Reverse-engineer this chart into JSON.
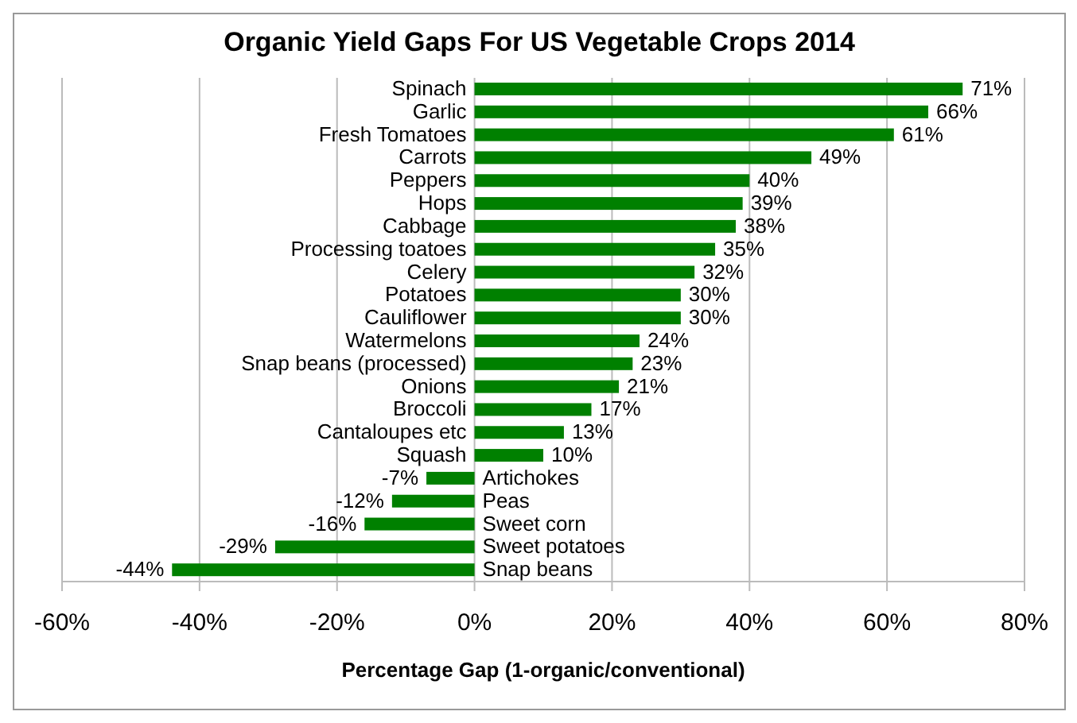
{
  "chart_data": {
    "type": "bar",
    "orientation": "horizontal",
    "title": "Organic Yield Gaps For US Vegetable Crops 2014",
    "xlabel": "Percentage Gap (1-organic/conventional)",
    "categories": [
      "Spinach",
      "Garlic",
      "Fresh Tomatoes",
      "Carrots",
      "Peppers",
      "Hops",
      "Cabbage",
      "Processing toatoes",
      "Celery",
      "Potatoes",
      "Cauliflower",
      "Watermelons",
      "Snap beans (processed)",
      "Onions",
      "Broccoli",
      "Cantaloupes etc",
      "Squash",
      "Artichokes",
      "Peas",
      "Sweet corn",
      "Sweet potatoes",
      "Snap beans"
    ],
    "values": [
      71,
      66,
      61,
      49,
      40,
      39,
      38,
      35,
      32,
      30,
      30,
      24,
      23,
      21,
      17,
      13,
      10,
      -7,
      -12,
      -16,
      -29,
      -44
    ],
    "value_labels": [
      "71%",
      "66%",
      "61%",
      "49%",
      "40%",
      "39%",
      "38%",
      "35%",
      "32%",
      "30%",
      "30%",
      "24%",
      "23%",
      "21%",
      "17%",
      "13%",
      "10%",
      "-7%",
      "-12%",
      "-16%",
      "-29%",
      "-44%"
    ],
    "color": "#008000",
    "xlim": [
      -60,
      80
    ],
    "xticks": [
      {
        "value": -60,
        "label": "-60%"
      },
      {
        "value": -40,
        "label": "-40%"
      },
      {
        "value": -20,
        "label": "-20%"
      },
      {
        "value": 0,
        "label": "0%"
      },
      {
        "value": 20,
        "label": "20%"
      },
      {
        "value": 40,
        "label": "40%"
      },
      {
        "value": 60,
        "label": "60%"
      },
      {
        "value": 80,
        "label": "80%"
      }
    ],
    "grid": "x",
    "legend": false
  }
}
